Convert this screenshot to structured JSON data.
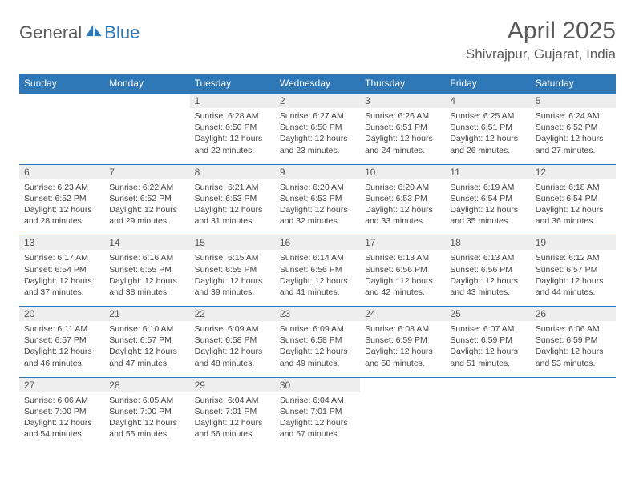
{
  "logo": {
    "part1": "General",
    "part2": "Blue"
  },
  "title": "April 2025",
  "location": "Shivrajpur, Gujarat, India",
  "colors": {
    "brand_blue": "#2f78b7",
    "header_text": "#ffffff",
    "daynum_bg": "#eeeeee",
    "body_text": "#444444",
    "title_text": "#5a5a5a"
  },
  "day_headers": [
    "Sunday",
    "Monday",
    "Tuesday",
    "Wednesday",
    "Thursday",
    "Friday",
    "Saturday"
  ],
  "weeks": [
    [
      {
        "num": "",
        "lines": []
      },
      {
        "num": "",
        "lines": []
      },
      {
        "num": "1",
        "lines": [
          "Sunrise: 6:28 AM",
          "Sunset: 6:50 PM",
          "Daylight: 12 hours",
          "and 22 minutes."
        ]
      },
      {
        "num": "2",
        "lines": [
          "Sunrise: 6:27 AM",
          "Sunset: 6:50 PM",
          "Daylight: 12 hours",
          "and 23 minutes."
        ]
      },
      {
        "num": "3",
        "lines": [
          "Sunrise: 6:26 AM",
          "Sunset: 6:51 PM",
          "Daylight: 12 hours",
          "and 24 minutes."
        ]
      },
      {
        "num": "4",
        "lines": [
          "Sunrise: 6:25 AM",
          "Sunset: 6:51 PM",
          "Daylight: 12 hours",
          "and 26 minutes."
        ]
      },
      {
        "num": "5",
        "lines": [
          "Sunrise: 6:24 AM",
          "Sunset: 6:52 PM",
          "Daylight: 12 hours",
          "and 27 minutes."
        ]
      }
    ],
    [
      {
        "num": "6",
        "lines": [
          "Sunrise: 6:23 AM",
          "Sunset: 6:52 PM",
          "Daylight: 12 hours",
          "and 28 minutes."
        ]
      },
      {
        "num": "7",
        "lines": [
          "Sunrise: 6:22 AM",
          "Sunset: 6:52 PM",
          "Daylight: 12 hours",
          "and 29 minutes."
        ]
      },
      {
        "num": "8",
        "lines": [
          "Sunrise: 6:21 AM",
          "Sunset: 6:53 PM",
          "Daylight: 12 hours",
          "and 31 minutes."
        ]
      },
      {
        "num": "9",
        "lines": [
          "Sunrise: 6:20 AM",
          "Sunset: 6:53 PM",
          "Daylight: 12 hours",
          "and 32 minutes."
        ]
      },
      {
        "num": "10",
        "lines": [
          "Sunrise: 6:20 AM",
          "Sunset: 6:53 PM",
          "Daylight: 12 hours",
          "and 33 minutes."
        ]
      },
      {
        "num": "11",
        "lines": [
          "Sunrise: 6:19 AM",
          "Sunset: 6:54 PM",
          "Daylight: 12 hours",
          "and 35 minutes."
        ]
      },
      {
        "num": "12",
        "lines": [
          "Sunrise: 6:18 AM",
          "Sunset: 6:54 PM",
          "Daylight: 12 hours",
          "and 36 minutes."
        ]
      }
    ],
    [
      {
        "num": "13",
        "lines": [
          "Sunrise: 6:17 AM",
          "Sunset: 6:54 PM",
          "Daylight: 12 hours",
          "and 37 minutes."
        ]
      },
      {
        "num": "14",
        "lines": [
          "Sunrise: 6:16 AM",
          "Sunset: 6:55 PM",
          "Daylight: 12 hours",
          "and 38 minutes."
        ]
      },
      {
        "num": "15",
        "lines": [
          "Sunrise: 6:15 AM",
          "Sunset: 6:55 PM",
          "Daylight: 12 hours",
          "and 39 minutes."
        ]
      },
      {
        "num": "16",
        "lines": [
          "Sunrise: 6:14 AM",
          "Sunset: 6:56 PM",
          "Daylight: 12 hours",
          "and 41 minutes."
        ]
      },
      {
        "num": "17",
        "lines": [
          "Sunrise: 6:13 AM",
          "Sunset: 6:56 PM",
          "Daylight: 12 hours",
          "and 42 minutes."
        ]
      },
      {
        "num": "18",
        "lines": [
          "Sunrise: 6:13 AM",
          "Sunset: 6:56 PM",
          "Daylight: 12 hours",
          "and 43 minutes."
        ]
      },
      {
        "num": "19",
        "lines": [
          "Sunrise: 6:12 AM",
          "Sunset: 6:57 PM",
          "Daylight: 12 hours",
          "and 44 minutes."
        ]
      }
    ],
    [
      {
        "num": "20",
        "lines": [
          "Sunrise: 6:11 AM",
          "Sunset: 6:57 PM",
          "Daylight: 12 hours",
          "and 46 minutes."
        ]
      },
      {
        "num": "21",
        "lines": [
          "Sunrise: 6:10 AM",
          "Sunset: 6:57 PM",
          "Daylight: 12 hours",
          "and 47 minutes."
        ]
      },
      {
        "num": "22",
        "lines": [
          "Sunrise: 6:09 AM",
          "Sunset: 6:58 PM",
          "Daylight: 12 hours",
          "and 48 minutes."
        ]
      },
      {
        "num": "23",
        "lines": [
          "Sunrise: 6:09 AM",
          "Sunset: 6:58 PM",
          "Daylight: 12 hours",
          "and 49 minutes."
        ]
      },
      {
        "num": "24",
        "lines": [
          "Sunrise: 6:08 AM",
          "Sunset: 6:59 PM",
          "Daylight: 12 hours",
          "and 50 minutes."
        ]
      },
      {
        "num": "25",
        "lines": [
          "Sunrise: 6:07 AM",
          "Sunset: 6:59 PM",
          "Daylight: 12 hours",
          "and 51 minutes."
        ]
      },
      {
        "num": "26",
        "lines": [
          "Sunrise: 6:06 AM",
          "Sunset: 6:59 PM",
          "Daylight: 12 hours",
          "and 53 minutes."
        ]
      }
    ],
    [
      {
        "num": "27",
        "lines": [
          "Sunrise: 6:06 AM",
          "Sunset: 7:00 PM",
          "Daylight: 12 hours",
          "and 54 minutes."
        ]
      },
      {
        "num": "28",
        "lines": [
          "Sunrise: 6:05 AM",
          "Sunset: 7:00 PM",
          "Daylight: 12 hours",
          "and 55 minutes."
        ]
      },
      {
        "num": "29",
        "lines": [
          "Sunrise: 6:04 AM",
          "Sunset: 7:01 PM",
          "Daylight: 12 hours",
          "and 56 minutes."
        ]
      },
      {
        "num": "30",
        "lines": [
          "Sunrise: 6:04 AM",
          "Sunset: 7:01 PM",
          "Daylight: 12 hours",
          "and 57 minutes."
        ]
      },
      {
        "num": "",
        "lines": []
      },
      {
        "num": "",
        "lines": []
      },
      {
        "num": "",
        "lines": []
      }
    ]
  ]
}
